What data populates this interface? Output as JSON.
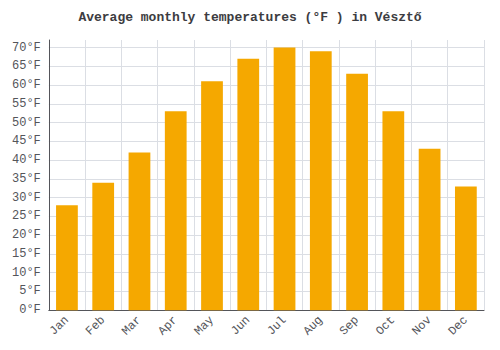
{
  "chart_data": {
    "type": "bar",
    "title": "Average monthly temperatures (°F ) in Vésztő",
    "categories": [
      "Jan",
      "Feb",
      "Mar",
      "Apr",
      "May",
      "Jun",
      "Jul",
      "Aug",
      "Sep",
      "Oct",
      "Nov",
      "Dec"
    ],
    "values": [
      28,
      34,
      42,
      53,
      61,
      67,
      70,
      69,
      63,
      53,
      43,
      33
    ],
    "color": "#F5A800",
    "ylim": [
      0,
      72
    ],
    "yticks": [
      {
        "value": 0,
        "label": "0°F"
      },
      {
        "value": 5,
        "label": "5°F"
      },
      {
        "value": 10,
        "label": "10°F"
      },
      {
        "value": 15,
        "label": "15°F"
      },
      {
        "value": 20,
        "label": "20°F"
      },
      {
        "value": 25,
        "label": "25°F"
      },
      {
        "value": 30,
        "label": "30°F"
      },
      {
        "value": 35,
        "label": "35°F"
      },
      {
        "value": 40,
        "label": "40°F"
      },
      {
        "value": 45,
        "label": "45°F"
      },
      {
        "value": 50,
        "label": "50°F"
      },
      {
        "value": 55,
        "label": "55°F"
      },
      {
        "value": 60,
        "label": "60°F"
      },
      {
        "value": 65,
        "label": "65°F"
      },
      {
        "value": 70,
        "label": "70°F"
      }
    ],
    "grid": true
  }
}
